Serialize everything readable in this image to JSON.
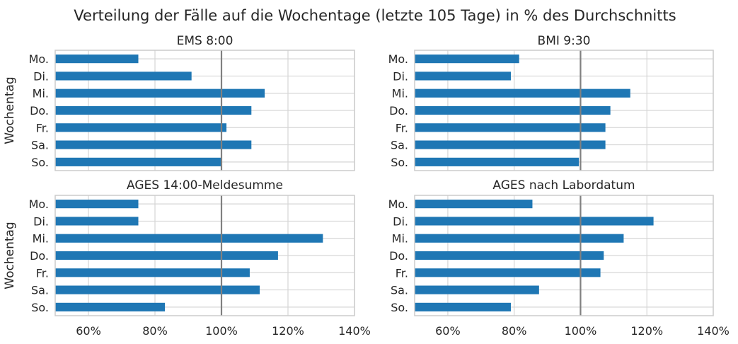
{
  "figure_title": "Verteilung der Fälle auf die Wochentage (letzte 105 Tage) in % des Durchschnitts",
  "colors": {
    "bar": "#1f77b4",
    "reference_line": "#808080",
    "grid": "#d6d6d6",
    "frame": "#cccccc"
  },
  "chart_data": [
    {
      "type": "bar",
      "orientation": "horizontal",
      "title": "EMS 8:00",
      "ylabel": "Wochentag",
      "xlabel": "",
      "categories": [
        "Mo.",
        "Di.",
        "Mi.",
        "Do.",
        "Fr.",
        "Sa.",
        "So."
      ],
      "values": [
        75,
        91,
        113,
        109,
        101.5,
        109,
        100
      ],
      "xlim": [
        50,
        140
      ],
      "xticks": [
        60,
        80,
        100,
        120,
        140
      ],
      "xtick_labels": [
        "60%",
        "80%",
        "100%",
        "120%",
        "140%"
      ],
      "reference_line": 100,
      "grid": true,
      "show_xtick_labels": false
    },
    {
      "type": "bar",
      "orientation": "horizontal",
      "title": "BMI 9:30",
      "ylabel": "",
      "xlabel": "",
      "categories": [
        "Mo.",
        "Di.",
        "Mi.",
        "Do.",
        "Fr.",
        "Sa.",
        "So."
      ],
      "values": [
        81.5,
        79,
        115,
        109,
        107.5,
        107.5,
        99.5
      ],
      "xlim": [
        50,
        140
      ],
      "xticks": [
        60,
        80,
        100,
        120,
        140
      ],
      "xtick_labels": [
        "60%",
        "80%",
        "100%",
        "120%",
        "140%"
      ],
      "reference_line": 100,
      "grid": true,
      "show_xtick_labels": false
    },
    {
      "type": "bar",
      "orientation": "horizontal",
      "title": "AGES 14:00-Meldesumme",
      "ylabel": "Wochentag",
      "xlabel": "",
      "categories": [
        "Mo.",
        "Di.",
        "Mi.",
        "Do.",
        "Fr.",
        "Sa.",
        "So."
      ],
      "values": [
        75,
        75,
        130.5,
        117,
        108.5,
        111.5,
        83
      ],
      "xlim": [
        50,
        140
      ],
      "xticks": [
        60,
        80,
        100,
        120,
        140
      ],
      "xtick_labels": [
        "60%",
        "80%",
        "100%",
        "120%",
        "140%"
      ],
      "reference_line": 100,
      "grid": true,
      "show_xtick_labels": true
    },
    {
      "type": "bar",
      "orientation": "horizontal",
      "title": "AGES nach Labordatum",
      "ylabel": "",
      "xlabel": "",
      "categories": [
        "Mo.",
        "Di.",
        "Mi.",
        "Do.",
        "Fr.",
        "Sa.",
        "So."
      ],
      "values": [
        85.5,
        122,
        113,
        107,
        106,
        87.5,
        79
      ],
      "xlim": [
        50,
        140
      ],
      "xticks": [
        60,
        80,
        100,
        120,
        140
      ],
      "xtick_labels": [
        "60%",
        "80%",
        "100%",
        "120%",
        "140%"
      ],
      "reference_line": 100,
      "grid": true,
      "show_xtick_labels": true
    }
  ]
}
